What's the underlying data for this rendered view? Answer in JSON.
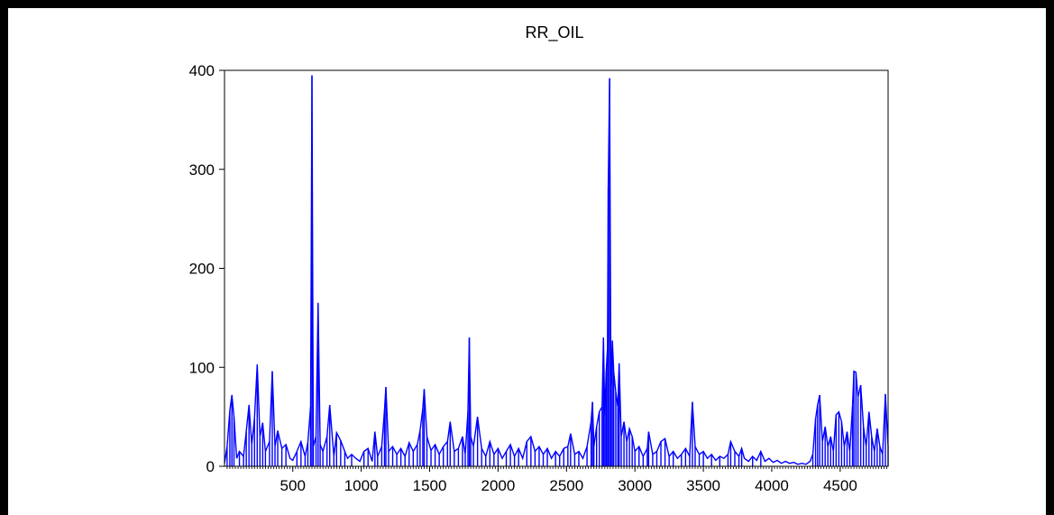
{
  "chart_data": {
    "type": "line",
    "title": "RR_OIL",
    "xlabel": "",
    "ylabel": "",
    "xlim": [
      1,
      4850
    ],
    "ylim": [
      0,
      400
    ],
    "x_ticks": [
      500,
      1000,
      1500,
      2000,
      2500,
      3000,
      3500,
      4000,
      4500
    ],
    "y_ticks": [
      0,
      100,
      200,
      300,
      400
    ],
    "grid": false,
    "legend": "none",
    "series_color": "#0000ff",
    "series": [
      {
        "name": "RR_OIL",
        "points": [
          [
            1,
            3
          ],
          [
            20,
            20
          ],
          [
            40,
            56
          ],
          [
            55,
            72
          ],
          [
            70,
            50
          ],
          [
            90,
            8
          ],
          [
            110,
            15
          ],
          [
            140,
            10
          ],
          [
            160,
            35
          ],
          [
            180,
            62
          ],
          [
            200,
            22
          ],
          [
            220,
            48
          ],
          [
            240,
            103
          ],
          [
            260,
            30
          ],
          [
            280,
            44
          ],
          [
            300,
            15
          ],
          [
            330,
            25
          ],
          [
            350,
            96
          ],
          [
            370,
            20
          ],
          [
            390,
            36
          ],
          [
            420,
            18
          ],
          [
            450,
            22
          ],
          [
            480,
            8
          ],
          [
            500,
            6
          ],
          [
            530,
            15
          ],
          [
            560,
            25
          ],
          [
            590,
            10
          ],
          [
            610,
            24
          ],
          [
            630,
            60
          ],
          [
            640,
            395
          ],
          [
            650,
            20
          ],
          [
            670,
            30
          ],
          [
            685,
            165
          ],
          [
            700,
            22
          ],
          [
            720,
            15
          ],
          [
            750,
            30
          ],
          [
            770,
            62
          ],
          [
            800,
            10
          ],
          [
            820,
            34
          ],
          [
            850,
            26
          ],
          [
            880,
            15
          ],
          [
            900,
            8
          ],
          [
            930,
            12
          ],
          [
            960,
            8
          ],
          [
            990,
            5
          ],
          [
            1020,
            15
          ],
          [
            1050,
            18
          ],
          [
            1080,
            5
          ],
          [
            1100,
            35
          ],
          [
            1120,
            10
          ],
          [
            1150,
            20
          ],
          [
            1170,
            56
          ],
          [
            1180,
            80
          ],
          [
            1200,
            15
          ],
          [
            1230,
            20
          ],
          [
            1260,
            12
          ],
          [
            1290,
            18
          ],
          [
            1320,
            10
          ],
          [
            1350,
            24
          ],
          [
            1380,
            15
          ],
          [
            1410,
            22
          ],
          [
            1430,
            36
          ],
          [
            1450,
            58
          ],
          [
            1460,
            78
          ],
          [
            1480,
            30
          ],
          [
            1510,
            16
          ],
          [
            1540,
            22
          ],
          [
            1570,
            12
          ],
          [
            1600,
            20
          ],
          [
            1630,
            25
          ],
          [
            1650,
            45
          ],
          [
            1680,
            15
          ],
          [
            1710,
            18
          ],
          [
            1740,
            30
          ],
          [
            1760,
            12
          ],
          [
            1780,
            55
          ],
          [
            1790,
            130
          ],
          [
            1800,
            30
          ],
          [
            1820,
            20
          ],
          [
            1850,
            50
          ],
          [
            1880,
            18
          ],
          [
            1910,
            10
          ],
          [
            1940,
            25
          ],
          [
            1970,
            12
          ],
          [
            2000,
            18
          ],
          [
            2030,
            8
          ],
          [
            2060,
            15
          ],
          [
            2090,
            22
          ],
          [
            2120,
            10
          ],
          [
            2150,
            18
          ],
          [
            2180,
            8
          ],
          [
            2210,
            25
          ],
          [
            2240,
            30
          ],
          [
            2270,
            15
          ],
          [
            2300,
            20
          ],
          [
            2330,
            12
          ],
          [
            2360,
            18
          ],
          [
            2390,
            8
          ],
          [
            2420,
            15
          ],
          [
            2450,
            10
          ],
          [
            2480,
            18
          ],
          [
            2510,
            20
          ],
          [
            2530,
            33
          ],
          [
            2560,
            12
          ],
          [
            2590,
            15
          ],
          [
            2620,
            8
          ],
          [
            2650,
            20
          ],
          [
            2680,
            45
          ],
          [
            2690,
            65
          ],
          [
            2700,
            20
          ],
          [
            2720,
            40
          ],
          [
            2740,
            55
          ],
          [
            2760,
            60
          ],
          [
            2770,
            130
          ],
          [
            2780,
            50
          ],
          [
            2790,
            95
          ],
          [
            2800,
            120
          ],
          [
            2805,
            282
          ],
          [
            2815,
            392
          ],
          [
            2825,
            80
          ],
          [
            2835,
            127
          ],
          [
            2845,
            95
          ],
          [
            2860,
            75
          ],
          [
            2875,
            60
          ],
          [
            2885,
            104
          ],
          [
            2900,
            30
          ],
          [
            2920,
            45
          ],
          [
            2940,
            25
          ],
          [
            2960,
            38
          ],
          [
            2980,
            30
          ],
          [
            3000,
            15
          ],
          [
            3030,
            20
          ],
          [
            3060,
            10
          ],
          [
            3090,
            18
          ],
          [
            3100,
            35
          ],
          [
            3130,
            12
          ],
          [
            3160,
            15
          ],
          [
            3190,
            25
          ],
          [
            3220,
            28
          ],
          [
            3250,
            10
          ],
          [
            3280,
            15
          ],
          [
            3310,
            8
          ],
          [
            3340,
            12
          ],
          [
            3370,
            18
          ],
          [
            3400,
            10
          ],
          [
            3420,
            65
          ],
          [
            3440,
            20
          ],
          [
            3470,
            12
          ],
          [
            3500,
            15
          ],
          [
            3530,
            8
          ],
          [
            3560,
            12
          ],
          [
            3590,
            6
          ],
          [
            3620,
            10
          ],
          [
            3650,
            8
          ],
          [
            3680,
            12
          ],
          [
            3700,
            25
          ],
          [
            3730,
            15
          ],
          [
            3760,
            10
          ],
          [
            3780,
            18
          ],
          [
            3800,
            8
          ],
          [
            3830,
            5
          ],
          [
            3860,
            10
          ],
          [
            3890,
            6
          ],
          [
            3920,
            15
          ],
          [
            3950,
            5
          ],
          [
            3980,
            8
          ],
          [
            4010,
            4
          ],
          [
            4040,
            6
          ],
          [
            4070,
            3
          ],
          [
            4100,
            5
          ],
          [
            4130,
            3
          ],
          [
            4160,
            4
          ],
          [
            4190,
            2
          ],
          [
            4220,
            3
          ],
          [
            4250,
            2
          ],
          [
            4280,
            5
          ],
          [
            4300,
            12
          ],
          [
            4320,
            48
          ],
          [
            4335,
            62
          ],
          [
            4350,
            72
          ],
          [
            4370,
            25
          ],
          [
            4390,
            40
          ],
          [
            4410,
            20
          ],
          [
            4430,
            30
          ],
          [
            4450,
            15
          ],
          [
            4470,
            52
          ],
          [
            4490,
            55
          ],
          [
            4510,
            45
          ],
          [
            4530,
            20
          ],
          [
            4550,
            35
          ],
          [
            4570,
            15
          ],
          [
            4590,
            60
          ],
          [
            4600,
            96
          ],
          [
            4615,
            95
          ],
          [
            4630,
            70
          ],
          [
            4650,
            82
          ],
          [
            4670,
            40
          ],
          [
            4690,
            20
          ],
          [
            4710,
            55
          ],
          [
            4730,
            30
          ],
          [
            4750,
            15
          ],
          [
            4770,
            38
          ],
          [
            4790,
            20
          ],
          [
            4810,
            12
          ],
          [
            4830,
            73
          ],
          [
            4850,
            20
          ]
        ]
      }
    ]
  }
}
